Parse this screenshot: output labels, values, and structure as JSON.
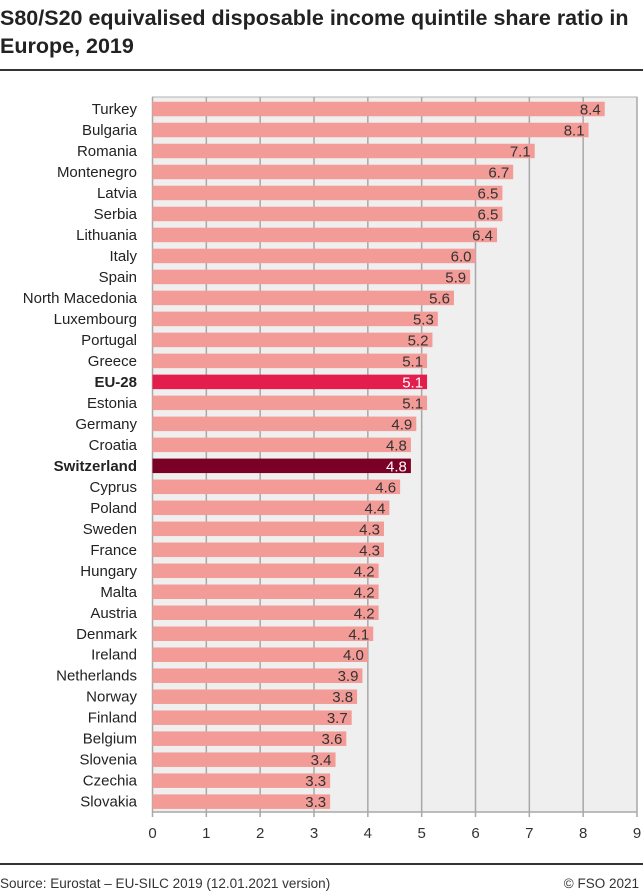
{
  "title": "S80/S20 equivalised disposable income quintile share ratio in Europe, 2019",
  "source": "Source: Eurostat – EU-SILC 2019 (12.01.2021 version)",
  "copyright": "© FSO 2021",
  "chart_data": {
    "type": "bar",
    "orientation": "horizontal",
    "categories": [
      "Turkey",
      "Bulgaria",
      "Romania",
      "Montenegro",
      "Latvia",
      "Serbia",
      "Lithuania",
      "Italy",
      "Spain",
      "North Macedonia",
      "Luxembourg",
      "Portugal",
      "Greece",
      "EU-28",
      "Estonia",
      "Germany",
      "Croatia",
      "Switzerland",
      "Cyprus",
      "Poland",
      "Sweden",
      "France",
      "Hungary",
      "Malta",
      "Austria",
      "Denmark",
      "Ireland",
      "Netherlands",
      "Norway",
      "Finland",
      "Belgium",
      "Slovenia",
      "Czechia",
      "Slovakia"
    ],
    "values": [
      8.4,
      8.1,
      7.1,
      6.7,
      6.5,
      6.5,
      6.4,
      6.0,
      5.9,
      5.6,
      5.3,
      5.2,
      5.1,
      5.1,
      5.1,
      4.9,
      4.8,
      4.8,
      4.6,
      4.4,
      4.3,
      4.3,
      4.2,
      4.2,
      4.2,
      4.1,
      4.0,
      3.9,
      3.8,
      3.7,
      3.6,
      3.4,
      3.3,
      3.3
    ],
    "data_labels": [
      "8.4",
      "8.1",
      "7.1",
      "6.7",
      "6.5",
      "6.5",
      "6.4",
      "6.0",
      "5.9",
      "5.6",
      "5.3",
      "5.2",
      "5.1",
      "5.1",
      "5.1",
      "4.9",
      "4.8",
      "4.8",
      "4.6",
      "4.4",
      "4.3",
      "4.3",
      "4.2",
      "4.2",
      "4.2",
      "4.1",
      "4.0",
      "3.9",
      "3.8",
      "3.7",
      "3.6",
      "3.4",
      "3.3",
      "3.3"
    ],
    "highlight": {
      "EU-28": "#e31e4c",
      "Switzerland": "#7b0025"
    },
    "bold_categories": [
      "EU-28",
      "Switzerland"
    ],
    "default_color": "#f39b96",
    "xlim": [
      0,
      9
    ],
    "xticks": [
      "0",
      "1",
      "2",
      "3",
      "4",
      "5",
      "6",
      "7",
      "8",
      "9"
    ],
    "grid": true,
    "xlabel": "",
    "ylabel": ""
  }
}
